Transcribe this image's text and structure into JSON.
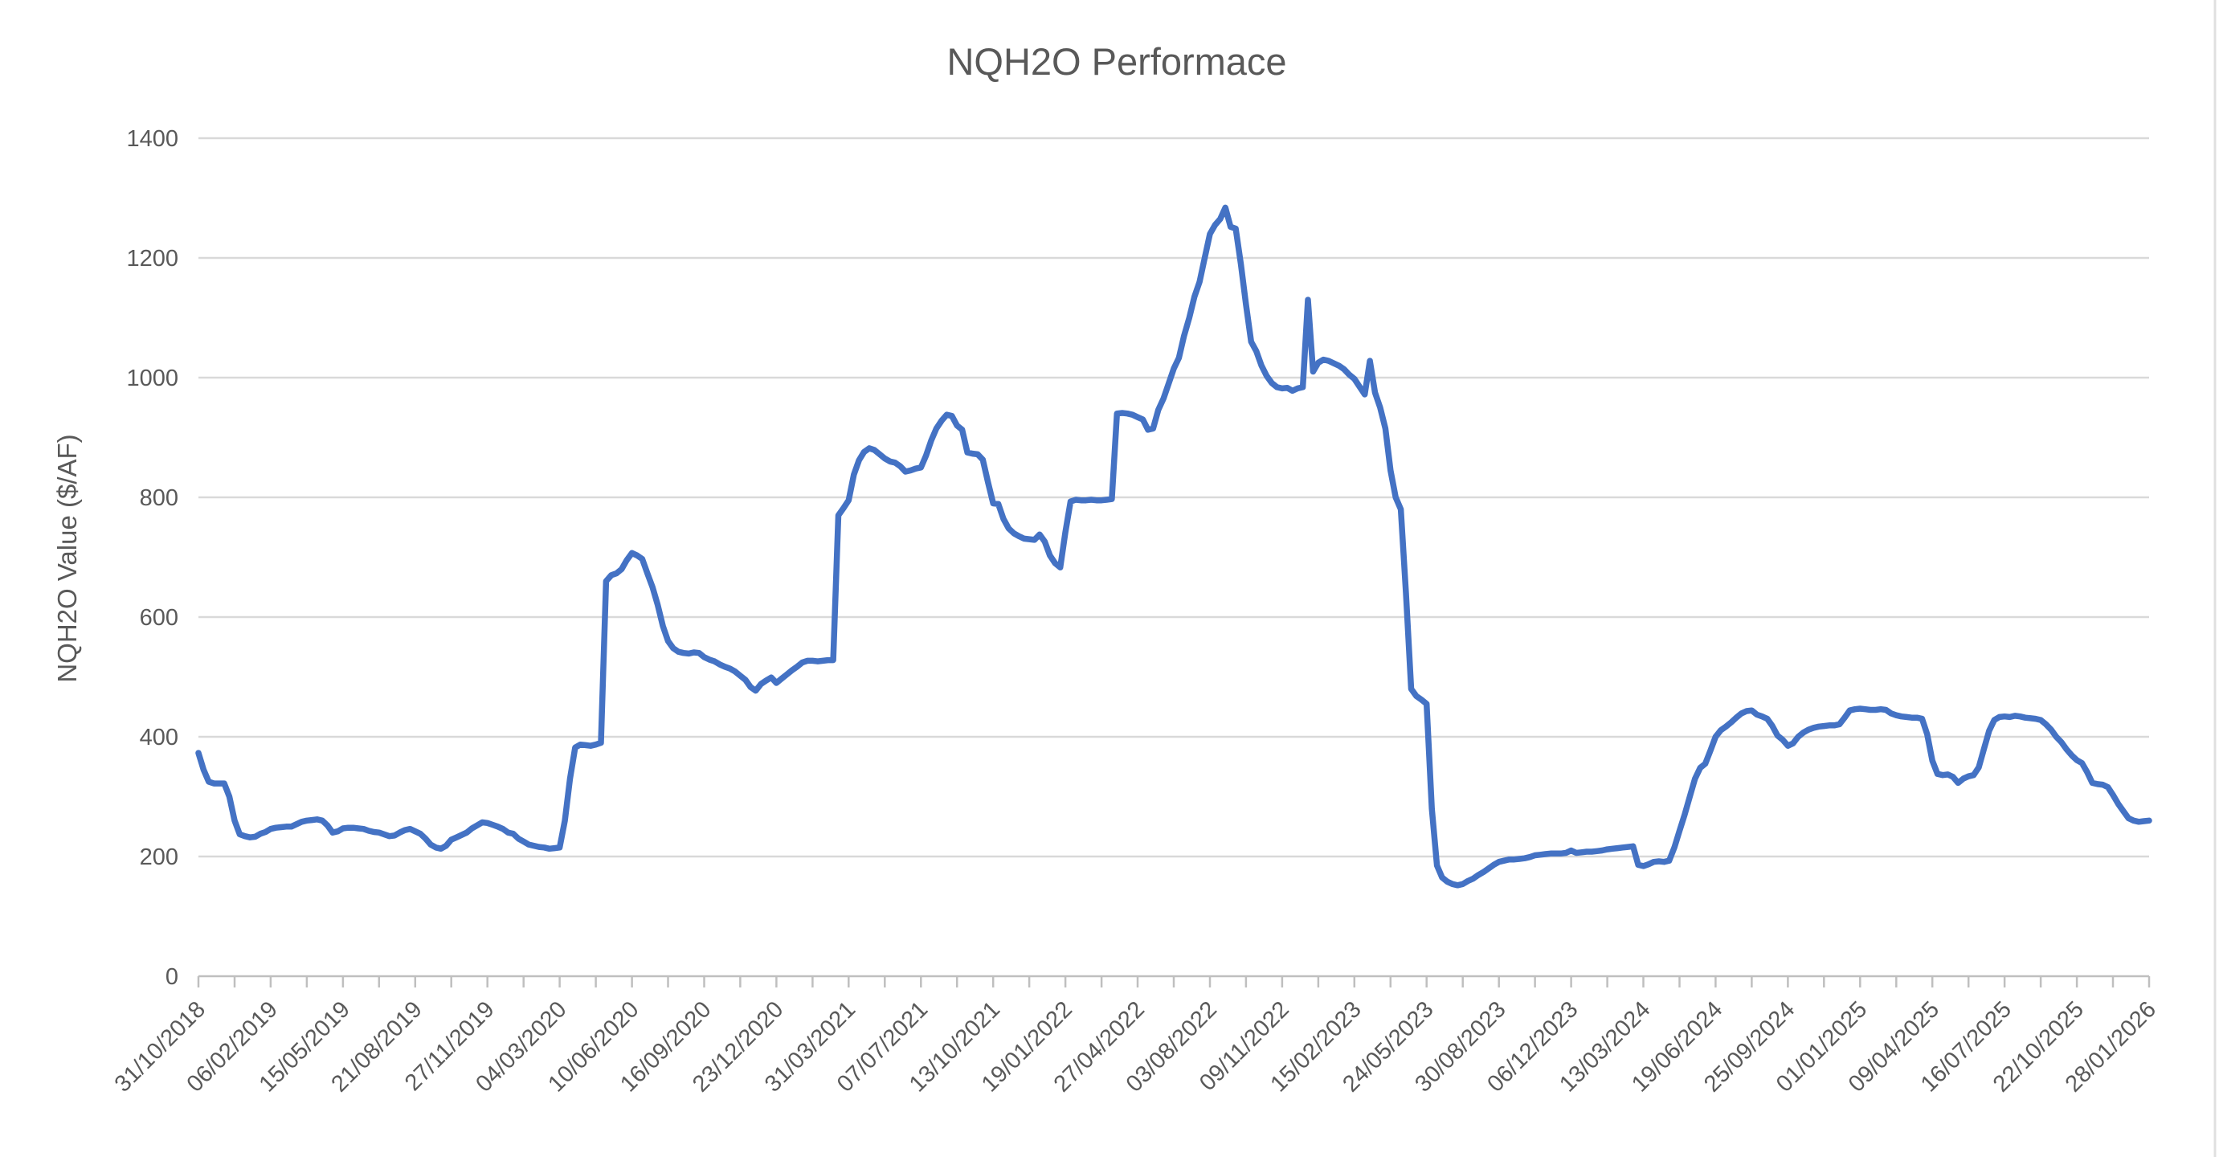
{
  "title": "NQH2O Performace",
  "colors": {
    "series_line": "#4472C4",
    "gridline": "#D9D9D9",
    "axis_line": "#BFBFBF",
    "text": "#595959",
    "background": "#FFFFFF"
  },
  "chart_data": {
    "type": "line",
    "title": "NQH2O Performace",
    "xlabel": "",
    "ylabel": "NQH2O Value ($/AF)",
    "ylim": [
      0,
      1400
    ],
    "y_ticks": [
      0,
      200,
      400,
      600,
      800,
      1000,
      1200,
      1400
    ],
    "grid": true,
    "legend_position": "none",
    "x_tick_labels": [
      "31/10/2018",
      "06/02/2019",
      "15/05/2019",
      "21/08/2019",
      "27/11/2019",
      "04/03/2020",
      "10/06/2020",
      "16/09/2020",
      "23/12/2020",
      "31/03/2021",
      "07/07/2021",
      "13/10/2021",
      "19/01/2022",
      "27/04/2022",
      "03/08/2022",
      "09/11/2022",
      "15/02/2023",
      "24/05/2023",
      "30/08/2023",
      "06/12/2023",
      "13/03/2024",
      "19/06/2024",
      "25/09/2024",
      "01/01/2025",
      "09/04/2025",
      "16/07/2025",
      "22/10/2025",
      "28/01/2026"
    ],
    "x_label_interval_weeks": 14,
    "x_minor_tick_interval_weeks": 7,
    "series": [
      {
        "name": "NQH2O Value ($/AF)",
        "color": "#4472C4",
        "frequency": "weekly",
        "start_label": "31/10/2018",
        "values": [
          373,
          345,
          325,
          322,
          322,
          322,
          300,
          260,
          237,
          234,
          232,
          233,
          238,
          241,
          246,
          248,
          249,
          250,
          250,
          254,
          258,
          260,
          261,
          262,
          260,
          252,
          240,
          242,
          247,
          248,
          248,
          247,
          246,
          243,
          241,
          240,
          237,
          234,
          235,
          240,
          244,
          246,
          242,
          238,
          230,
          220,
          215,
          213,
          218,
          228,
          232,
          236,
          240,
          247,
          252,
          257,
          256,
          253,
          250,
          246,
          240,
          238,
          230,
          225,
          220,
          218,
          216,
          215,
          213,
          214,
          215,
          260,
          330,
          382,
          387,
          386,
          385,
          387,
          390,
          660,
          670,
          673,
          680,
          695,
          707,
          703,
          697,
          673,
          650,
          620,
          585,
          560,
          548,
          542,
          540,
          539,
          541,
          540,
          533,
          529,
          526,
          521,
          517,
          514,
          509,
          502,
          495,
          483,
          477,
          488,
          494,
          499,
          490,
          497,
          504,
          511,
          517,
          524,
          527,
          527,
          526,
          527,
          528,
          528,
          770,
          782,
          795,
          838,
          862,
          876,
          882,
          879,
          872,
          865,
          860,
          858,
          852,
          843,
          845,
          848,
          850,
          870,
          895,
          915,
          928,
          938,
          936,
          920,
          913,
          875,
          873,
          872,
          863,
          825,
          790,
          789,
          764,
          748,
          740,
          735,
          731,
          730,
          729,
          738,
          726,
          703,
          690,
          683,
          742,
          793,
          796,
          795,
          795,
          796,
          795,
          795,
          796,
          797,
          940,
          941,
          940,
          938,
          934,
          930,
          913,
          915,
          946,
          965,
          990,
          1015,
          1033,
          1070,
          1100,
          1135,
          1160,
          1200,
          1240,
          1255,
          1265,
          1284,
          1252,
          1249,
          1190,
          1122,
          1060,
          1044,
          1020,
          1003,
          991,
          984,
          982,
          983,
          978,
          982,
          984,
          1130,
          1010,
          1025,
          1030,
          1028,
          1024,
          1020,
          1014,
          1005,
          998,
          985,
          972,
          1028,
          975,
          950,
          915,
          845,
          800,
          780,
          640,
          480,
          468,
          462,
          455,
          280,
          185,
          165,
          158,
          154,
          152,
          154,
          159,
          163,
          169,
          174,
          180,
          186,
          191,
          193,
          195,
          195,
          196,
          197,
          199,
          202,
          203,
          204,
          205,
          205,
          205,
          206,
          210,
          206,
          207,
          208,
          208,
          209,
          210,
          212,
          213,
          214,
          215,
          216,
          217,
          186,
          184,
          187,
          191,
          192,
          191,
          193,
          215,
          243,
          270,
          300,
          330,
          348,
          355,
          377,
          400,
          411,
          417,
          424,
          432,
          439,
          443,
          444,
          437,
          434,
          430,
          418,
          402,
          395,
          385,
          389,
          400,
          407,
          412,
          415,
          417,
          418,
          419,
          419,
          421,
          432,
          444,
          446,
          447,
          446,
          445,
          445,
          446,
          445,
          439,
          436,
          434,
          433,
          432,
          432,
          430,
          404,
          360,
          338,
          336,
          337,
          333,
          323,
          330,
          334,
          336,
          349,
          380,
          410,
          428,
          433,
          434,
          433,
          435,
          434,
          432,
          431,
          430,
          428,
          421,
          412,
          400,
          391,
          379,
          369,
          361,
          356,
          341,
          323,
          321,
          320,
          316,
          303,
          288,
          276,
          264,
          260,
          258,
          259,
          260
        ]
      }
    ]
  }
}
